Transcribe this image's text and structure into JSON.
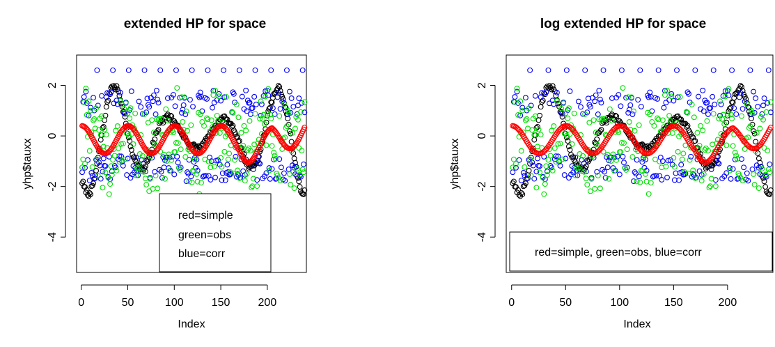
{
  "chart_data": [
    {
      "type": "scatter",
      "title": "extended HP for space",
      "xlabel": "Index",
      "ylabel": "yhp$tauxx",
      "xlim": [
        -5,
        242
      ],
      "ylim": [
        -5.4,
        3.2
      ],
      "x_ticks": [
        "0",
        "50",
        "100",
        "150",
        "200"
      ],
      "y_ticks": [
        "-4",
        "-2",
        "0",
        "2"
      ],
      "x_tick_values": [
        0,
        50,
        100,
        150,
        200
      ],
      "y_tick_values": [
        -4,
        -2,
        0,
        2
      ],
      "grid": false,
      "legend": {
        "placement": "bottom-center",
        "entries": [
          "red=simple",
          "green=obs",
          "blue=corr"
        ]
      },
      "series": [
        {
          "name": "simple",
          "color": "#ff0000",
          "marker": "open-circle"
        },
        {
          "name": "obs",
          "color": "#00e000",
          "marker": "open-circle"
        },
        {
          "name": "corr",
          "color": "#0000ff",
          "marker": "open-circle"
        },
        {
          "color": "#000000",
          "marker": "open-circle"
        }
      ],
      "n_points": 240
    },
    {
      "type": "scatter",
      "title": "log extended HP for space",
      "xlabel": "Index",
      "ylabel": "yhp$tauxx",
      "xlim": [
        -5,
        242
      ],
      "ylim": [
        -5.4,
        3.2
      ],
      "x_ticks": [
        "0",
        "50",
        "100",
        "150",
        "200"
      ],
      "y_ticks": [
        "-4",
        "-2",
        "0",
        "2"
      ],
      "x_tick_values": [
        0,
        50,
        100,
        150,
        200
      ],
      "y_tick_values": [
        -4,
        -2,
        0,
        2
      ],
      "grid": false,
      "legend": {
        "placement": "bottom",
        "entries": [
          "red=simple, green=obs, blue=corr"
        ]
      },
      "series": [
        {
          "name": "simple",
          "color": "#ff0000",
          "marker": "open-circle"
        },
        {
          "name": "obs",
          "color": "#00e000",
          "marker": "open-circle"
        },
        {
          "name": "corr",
          "color": "#0000ff",
          "marker": "open-circle"
        },
        {
          "color": "#000000",
          "marker": "open-circle"
        }
      ],
      "n_points": 240
    }
  ]
}
